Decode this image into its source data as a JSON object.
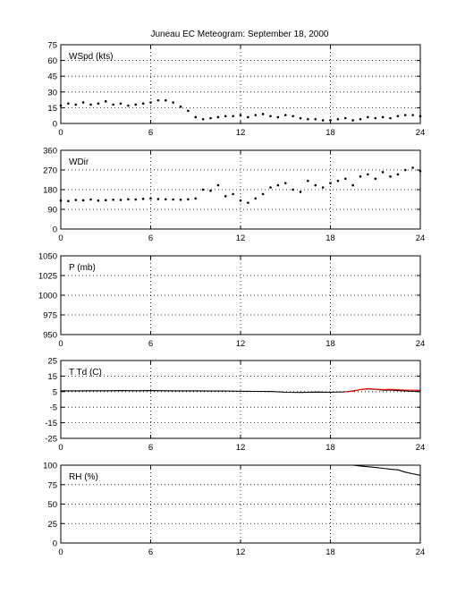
{
  "title": "Juneau EC Meteogram: September 18, 2000",
  "chart_data": [
    {
      "type": "scatter",
      "label": "WSpd (kts)",
      "xlim": [
        0,
        24
      ],
      "ylim": [
        0,
        75
      ],
      "xticks": [
        0,
        6,
        12,
        18,
        24
      ],
      "yticks": [
        0,
        15,
        30,
        45,
        60,
        75
      ],
      "grid": true,
      "series": [
        {
          "color": "#000000",
          "x": [
            0,
            0.5,
            1,
            1.5,
            2,
            2.5,
            3,
            3.5,
            4,
            4.5,
            5,
            5.5,
            6,
            6.5,
            7,
            7.5,
            8,
            8.5,
            9,
            9.5,
            10,
            10.5,
            11,
            11.5,
            12,
            12.5,
            13,
            13.5,
            14,
            14.5,
            15,
            15.5,
            16,
            16.5,
            17,
            17.5,
            18,
            18.5,
            19,
            19.5,
            20,
            20.5,
            21,
            21.5,
            22,
            22.5,
            23,
            23.5,
            24
          ],
          "y": [
            17,
            19,
            18,
            20,
            18,
            19,
            21,
            18,
            19,
            17,
            18,
            19,
            20,
            22,
            22,
            20,
            16,
            12,
            6,
            4,
            5,
            6,
            7,
            7,
            8,
            6,
            8,
            9,
            7,
            6,
            8,
            7,
            5,
            4,
            4,
            3,
            3,
            4,
            5,
            3,
            4,
            6,
            5,
            6,
            5,
            7,
            8,
            8,
            7
          ]
        }
      ]
    },
    {
      "type": "scatter",
      "label": "WDir",
      "xlim": [
        0,
        24
      ],
      "ylim": [
        0,
        360
      ],
      "xticks": [
        0,
        6,
        12,
        18,
        24
      ],
      "yticks": [
        0,
        90,
        180,
        270,
        360
      ],
      "grid": true,
      "series": [
        {
          "color": "#000000",
          "x": [
            0,
            0.5,
            1,
            1.5,
            2,
            2.5,
            3,
            3.5,
            4,
            4.5,
            5,
            5.5,
            6,
            6.5,
            7,
            7.5,
            8,
            8.5,
            9,
            9.5,
            10,
            10.5,
            11,
            11.5,
            12,
            12.5,
            13,
            13.5,
            14,
            14.5,
            15,
            15.5,
            16,
            16.5,
            17,
            17.5,
            18,
            18.5,
            19,
            19.5,
            20,
            20.5,
            21,
            21.5,
            22,
            22.5,
            23,
            23.5,
            24
          ],
          "y": [
            130,
            128,
            133,
            131,
            135,
            130,
            132,
            134,
            133,
            136,
            135,
            138,
            140,
            137,
            136,
            135,
            134,
            136,
            140,
            180,
            175,
            200,
            150,
            160,
            130,
            120,
            140,
            160,
            190,
            200,
            210,
            180,
            170,
            220,
            200,
            190,
            210,
            220,
            230,
            200,
            240,
            250,
            230,
            260,
            240,
            250,
            270,
            280,
            265
          ]
        }
      ]
    },
    {
      "type": "line",
      "label": "P (mb)",
      "xlim": [
        0,
        24
      ],
      "ylim": [
        950,
        1050
      ],
      "xticks": [
        0,
        6,
        12,
        18,
        24
      ],
      "yticks": [
        950,
        975,
        1000,
        1025,
        1050
      ],
      "grid": true,
      "series": []
    },
    {
      "type": "line",
      "label": "T Td (C)",
      "xlim": [
        0,
        24
      ],
      "ylim": [
        -25,
        25
      ],
      "xticks": [
        0,
        6,
        12,
        18,
        24
      ],
      "yticks": [
        -25,
        -15,
        -5,
        5,
        15,
        25
      ],
      "grid": true,
      "series": [
        {
          "color": "#000000",
          "x": [
            0,
            1,
            2,
            3,
            4,
            5,
            6,
            7,
            8,
            9,
            10,
            11,
            12,
            13,
            14,
            15,
            16,
            17,
            18,
            19,
            19.5,
            20,
            20.5,
            21,
            21.5,
            22,
            22.5,
            23,
            23.5,
            24
          ],
          "y": [
            5.5,
            5.5,
            5.6,
            5.6,
            5.7,
            5.6,
            5.7,
            5.6,
            5.5,
            5.5,
            5.4,
            5.4,
            5.3,
            5.2,
            5.1,
            4.6,
            4.5,
            4.7,
            4.6,
            4.9,
            5.5,
            6.3,
            6.8,
            6.5,
            6.0,
            6.1,
            5.7,
            5.5,
            5.2,
            5.0
          ]
        },
        {
          "color": "#ff0000",
          "x": [
            19,
            19.5,
            20,
            20.5,
            21,
            21.5,
            22,
            22.5,
            23,
            23.5,
            24
          ],
          "y": [
            4.8,
            5.3,
            6.4,
            7.0,
            6.6,
            6.4,
            6.5,
            6.2,
            6.0,
            5.9,
            5.8
          ]
        }
      ]
    },
    {
      "type": "line",
      "label": "RH (%)",
      "xlim": [
        0,
        24
      ],
      "ylim": [
        0,
        100
      ],
      "xticks": [
        0,
        6,
        12,
        18,
        24
      ],
      "yticks": [
        0,
        25,
        50,
        75,
        100
      ],
      "grid": true,
      "series": [
        {
          "color": "#000000",
          "x": [
            19,
            19.5,
            20,
            20.5,
            21,
            21.5,
            22,
            22.5,
            23,
            23.5,
            24
          ],
          "y": [
            100,
            100,
            99,
            98,
            97,
            96,
            95,
            94,
            91,
            89,
            87
          ]
        }
      ]
    }
  ]
}
